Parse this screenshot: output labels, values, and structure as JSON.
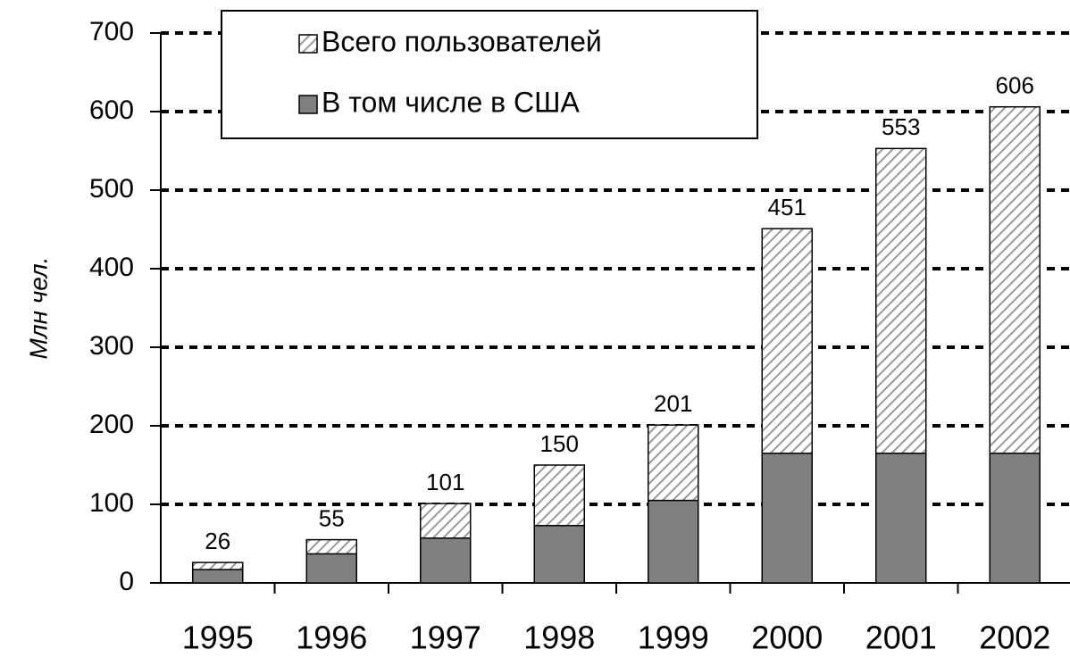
{
  "chart_data": {
    "type": "bar",
    "y_label": "Млн чел.",
    "categories": [
      "1995",
      "1996",
      "1997",
      "1998",
      "1999",
      "2000",
      "2001",
      "2002"
    ],
    "series": [
      {
        "name": "Всего пользователей",
        "color": "#9a9a9a",
        "values": [
          26,
          55,
          101,
          150,
          201,
          451,
          553,
          606
        ]
      },
      {
        "name": "В том числе в США",
        "color": "#808080",
        "values": [
          17,
          37,
          57,
          73,
          105,
          165,
          165,
          165
        ]
      }
    ],
    "ylim": [
      0,
      700
    ],
    "yticks": [
      0,
      100,
      200,
      300,
      400,
      500,
      600,
      700
    ],
    "grid": true,
    "legend": "top"
  }
}
